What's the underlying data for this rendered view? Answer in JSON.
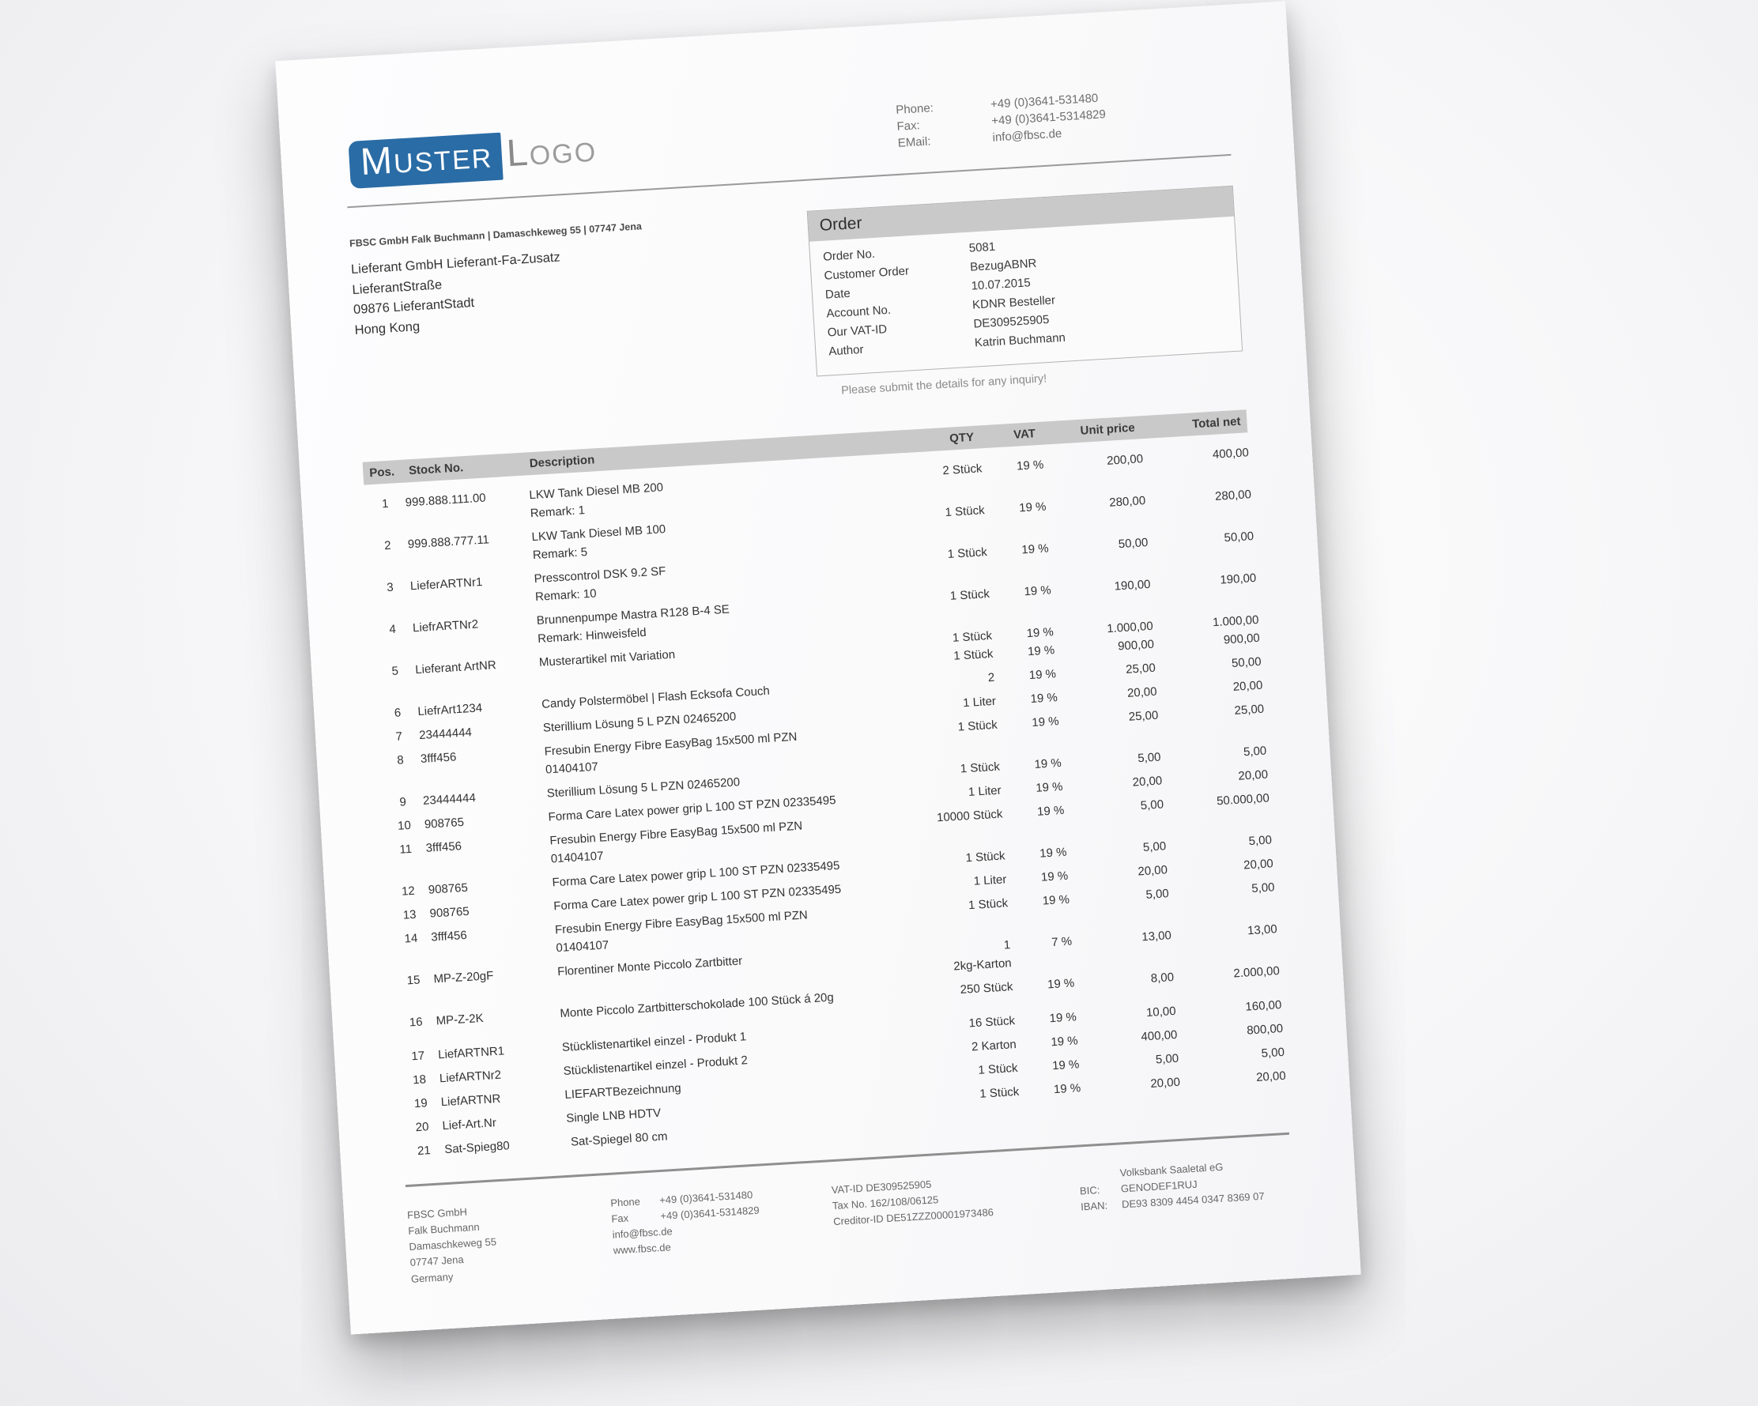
{
  "brand": {
    "logo_primary": "MUSTER",
    "logo_secondary": "LOGO",
    "logo_bg_color": "#2a6ca5",
    "logo_secondary_color": "#9c9c9c"
  },
  "header_contact": {
    "rows": [
      {
        "label": "Phone:",
        "value": "+49 (0)3641-531480"
      },
      {
        "label": "Fax:",
        "value": "+49 (0)3641-5314829"
      },
      {
        "label": "EMail:",
        "value": "info@fbsc.de"
      }
    ]
  },
  "sender_line": "FBSC GmbH Falk Buchmann | Damaschkeweg 55 | 07747 Jena",
  "recipient": [
    "Lieferant GmbH Lieferant-Fa-Zusatz",
    "LieferantStraße",
    "09876 LieferantStadt",
    "Hong Kong"
  ],
  "order_box": {
    "title": "Order",
    "fields": [
      {
        "label": "Order No.",
        "value": "5081"
      },
      {
        "label": "Customer Order",
        "value": "BezugABNR"
      },
      {
        "label": "Date",
        "value": "10.07.2015"
      },
      {
        "label": "Account No.",
        "value": "KDNR Besteller"
      },
      {
        "label": "Our VAT-ID",
        "value": "DE309525905"
      },
      {
        "label": "Author",
        "value": "Katrin Buchmann"
      }
    ]
  },
  "inquiry_note": "Please submit the details for any inquiry!",
  "table": {
    "headers": {
      "pos": "Pos.",
      "stock": "Stock No.",
      "desc": "Description",
      "qty": "QTY",
      "vat": "VAT",
      "unit": "Unit price",
      "total": "Total net"
    },
    "rows": [
      {
        "pos": "1",
        "stock": "999.888.111.00",
        "desc": "LKW Tank Diesel MB 200",
        "desc2": "Remark: 1",
        "values": [
          {
            "qty": "2 Stück",
            "vat": "19 %",
            "unit": "200,00",
            "total": "400,00"
          }
        ]
      },
      {
        "pos": "2",
        "stock": "999.888.777.11",
        "desc": "LKW Tank Diesel MB 100",
        "desc2": "Remark: 5",
        "values": [
          {
            "qty": "1 Stück",
            "vat": "19 %",
            "unit": "280,00",
            "total": "280,00"
          }
        ]
      },
      {
        "pos": "3",
        "stock": "LieferARTNr1",
        "desc": "Presscontrol DSK 9.2 SF",
        "desc2": "Remark: 10",
        "values": [
          {
            "qty": "1 Stück",
            "vat": "19 %",
            "unit": "50,00",
            "total": "50,00"
          }
        ]
      },
      {
        "pos": "4",
        "stock": "LiefrARTNr2",
        "desc": "Brunnenpumpe Mastra R128 B-4 SE",
        "desc2": "Remark: Hinweisfeld",
        "values": [
          {
            "qty": "1 Stück",
            "vat": "19 %",
            "unit": "190,00",
            "total": "190,00"
          }
        ]
      },
      {
        "pos": "5",
        "stock": "Lieferant ArtNR",
        "desc": "Musterartikel mit Variation",
        "values": [
          {
            "qty": "1 Stück",
            "vat": "19 %",
            "unit": "1.000,00",
            "total": "1.000,00"
          },
          {
            "qty": "1 Stück",
            "vat": "19 %",
            "unit": "900,00",
            "total": "900,00"
          }
        ]
      },
      {
        "pos": "6",
        "stock": "LiefrArt1234",
        "desc": "Candy Polstermöbel | Flash Ecksofa Couch",
        "values": [
          {
            "qty": "2",
            "vat": "19 %",
            "unit": "25,00",
            "total": "50,00"
          }
        ]
      },
      {
        "pos": "7",
        "stock": "23444444",
        "desc": "Sterillium Lösung 5 L PZN 02465200",
        "values": [
          {
            "qty": "1 Liter",
            "vat": "19 %",
            "unit": "20,00",
            "total": "20,00"
          }
        ]
      },
      {
        "pos": "8",
        "stock": "3fff456",
        "desc": "Fresubin Energy Fibre EasyBag 15x500 ml PZN",
        "desc2": "01404107",
        "values": [
          {
            "qty": "1 Stück",
            "vat": "19 %",
            "unit": "25,00",
            "total": "25,00"
          }
        ]
      },
      {
        "pos": "9",
        "stock": "23444444",
        "desc": "Sterillium Lösung 5 L PZN 02465200",
        "values": [
          {
            "qty": "1 Stück",
            "vat": "19 %",
            "unit": "5,00",
            "total": "5,00"
          }
        ]
      },
      {
        "pos": "10",
        "stock": "908765",
        "desc": "Forma Care Latex power grip L 100 ST PZN 02335495",
        "values": [
          {
            "qty": "1 Liter",
            "vat": "19 %",
            "unit": "20,00",
            "total": "20,00"
          }
        ]
      },
      {
        "pos": "11",
        "stock": "3fff456",
        "desc": "Fresubin Energy Fibre EasyBag 15x500 ml PZN",
        "desc2": "01404107",
        "values": [
          {
            "qty": "10000 Stück",
            "vat": "19 %",
            "unit": "5,00",
            "total": "50.000,00"
          }
        ]
      },
      {
        "pos": "12",
        "stock": "908765",
        "desc": "Forma Care Latex power grip L 100 ST PZN 02335495",
        "values": [
          {
            "qty": "1 Stück",
            "vat": "19 %",
            "unit": "5,00",
            "total": "5,00"
          }
        ]
      },
      {
        "pos": "13",
        "stock": "908765",
        "desc": "Forma Care Latex power grip L 100 ST PZN 02335495",
        "values": [
          {
            "qty": "1 Liter",
            "vat": "19 %",
            "unit": "20,00",
            "total": "20,00"
          }
        ]
      },
      {
        "pos": "14",
        "stock": "3fff456",
        "desc": "Fresubin Energy Fibre EasyBag 15x500 ml PZN",
        "desc2": "01404107",
        "values": [
          {
            "qty": "1 Stück",
            "vat": "19 %",
            "unit": "5,00",
            "total": "5,00"
          }
        ]
      },
      {
        "pos": "15",
        "stock": "MP-Z-20gF",
        "desc": "Florentiner Monte Piccolo Zartbitter",
        "values": [
          {
            "qty": "1",
            "qty2": "2kg-Karton",
            "vat": "7 %",
            "unit": "13,00",
            "total": "13,00"
          }
        ]
      },
      {
        "pos": "16",
        "stock": "MP-Z-2K",
        "desc": "Monte Piccolo Zartbitterschokolade 100 Stück á 20g",
        "values": [
          {
            "qty": "250 Stück",
            "vat": "19 %",
            "unit": "8,00",
            "total": "2.000,00"
          }
        ]
      },
      {
        "pos": "17",
        "stock": "LiefARTNR1",
        "desc": "Stücklistenartikel einzel - Produkt 1",
        "gap_before": true,
        "values": [
          {
            "qty": "16 Stück",
            "vat": "19 %",
            "unit": "10,00",
            "total": "160,00"
          }
        ]
      },
      {
        "pos": "18",
        "stock": "LiefARTNr2",
        "desc": "Stücklistenartikel einzel - Produkt 2",
        "values": [
          {
            "qty": "2 Karton",
            "vat": "19 %",
            "unit": "400,00",
            "total": "800,00"
          }
        ]
      },
      {
        "pos": "19",
        "stock": "LiefARTNR",
        "desc": "LIEFARTBezeichnung",
        "values": [
          {
            "qty": "1 Stück",
            "vat": "19 %",
            "unit": "5,00",
            "total": "5,00"
          }
        ]
      },
      {
        "pos": "20",
        "stock": "Lief-Art.Nr",
        "desc": "Single LNB HDTV",
        "values": [
          {
            "qty": "1 Stück",
            "vat": "19 %",
            "unit": "20,00",
            "total": "20,00"
          }
        ]
      },
      {
        "pos": "21",
        "stock": "Sat-Spieg80",
        "desc": "Sat-Spiegel 80 cm",
        "values": []
      }
    ]
  },
  "footer": {
    "company": [
      "FBSC GmbH",
      "Falk Buchmann",
      "Damaschkeweg 55",
      "07747 Jena",
      "Germany"
    ],
    "contact": {
      "phone_label": "Phone",
      "phone": "+49 (0)3641-531480",
      "fax_label": "Fax",
      "fax": "+49 (0)3641-5314829",
      "email": "info@fbsc.de",
      "web": "www.fbsc.de"
    },
    "tax": [
      "VAT-ID DE309525905",
      "Tax No. 162/108/06125",
      "Creditor-ID DE51ZZZ00001973486"
    ],
    "bank": {
      "name": "Volksbank Saaletal eG",
      "bic_label": "BIC:",
      "bic": "GENODEF1RUJ",
      "iban_label": "IBAN:",
      "iban": "DE93 8309 4454 0347 8369 07"
    }
  }
}
